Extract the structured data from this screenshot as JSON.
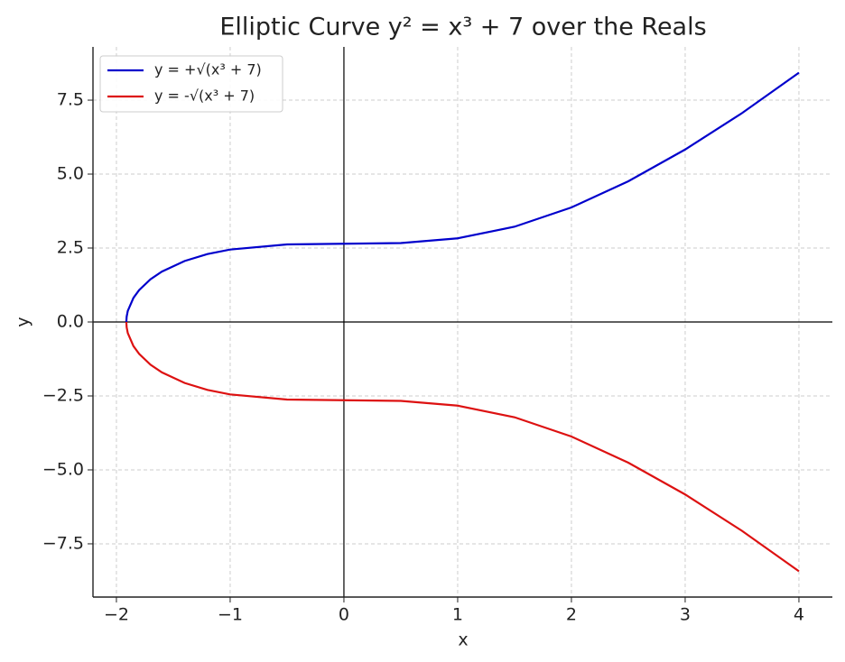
{
  "chart_data": {
    "type": "line",
    "title": "Elliptic Curve y² = x³ + 7 over the Reals",
    "x_label": "x",
    "y_label": "y",
    "x": [
      -1.913,
      -1.91,
      -1.9,
      -1.85,
      -1.8,
      -1.7,
      -1.6,
      -1.4,
      -1.2,
      -1,
      -0.5,
      0,
      0.5,
      1,
      1.5,
      2,
      2.5,
      3,
      3.5,
      4
    ],
    "series": [
      {
        "name": "y = +√(x³ + 7)",
        "color": "#0000cc",
        "values": [
          0,
          0.179,
          0.375,
          0.818,
          1.081,
          1.445,
          1.704,
          2.063,
          2.296,
          2.449,
          2.622,
          2.646,
          2.669,
          2.828,
          3.221,
          3.873,
          4.757,
          5.831,
          7.062,
          8.426
        ]
      },
      {
        "name": "y = -√(x³ + 7)",
        "color": "#dd1111",
        "values": [
          0,
          -0.179,
          -0.375,
          -0.818,
          -1.081,
          -1.445,
          -1.704,
          -2.063,
          -2.296,
          -2.449,
          -2.622,
          -2.646,
          -2.669,
          -2.828,
          -3.221,
          -3.873,
          -4.757,
          -5.831,
          -7.062,
          -8.426
        ]
      }
    ],
    "xlim": [
      -2.206,
      4.294
    ],
    "ylim": [
      -9.3,
      9.3
    ],
    "xticks": [
      {
        "value": -2,
        "label": "−2"
      },
      {
        "value": -1,
        "label": "−1"
      },
      0,
      1,
      2,
      3,
      4
    ],
    "yticks": [
      {
        "value": -7.5,
        "label": "−7.5"
      },
      {
        "value": -5,
        "label": "−5.0"
      },
      {
        "value": -2.5,
        "label": "−2.5"
      },
      {
        "value": 0,
        "label": "0.0"
      },
      2.5,
      {
        "value": 5,
        "label": "5.0"
      },
      7.5
    ],
    "grid": true,
    "legend": "upper left"
  }
}
